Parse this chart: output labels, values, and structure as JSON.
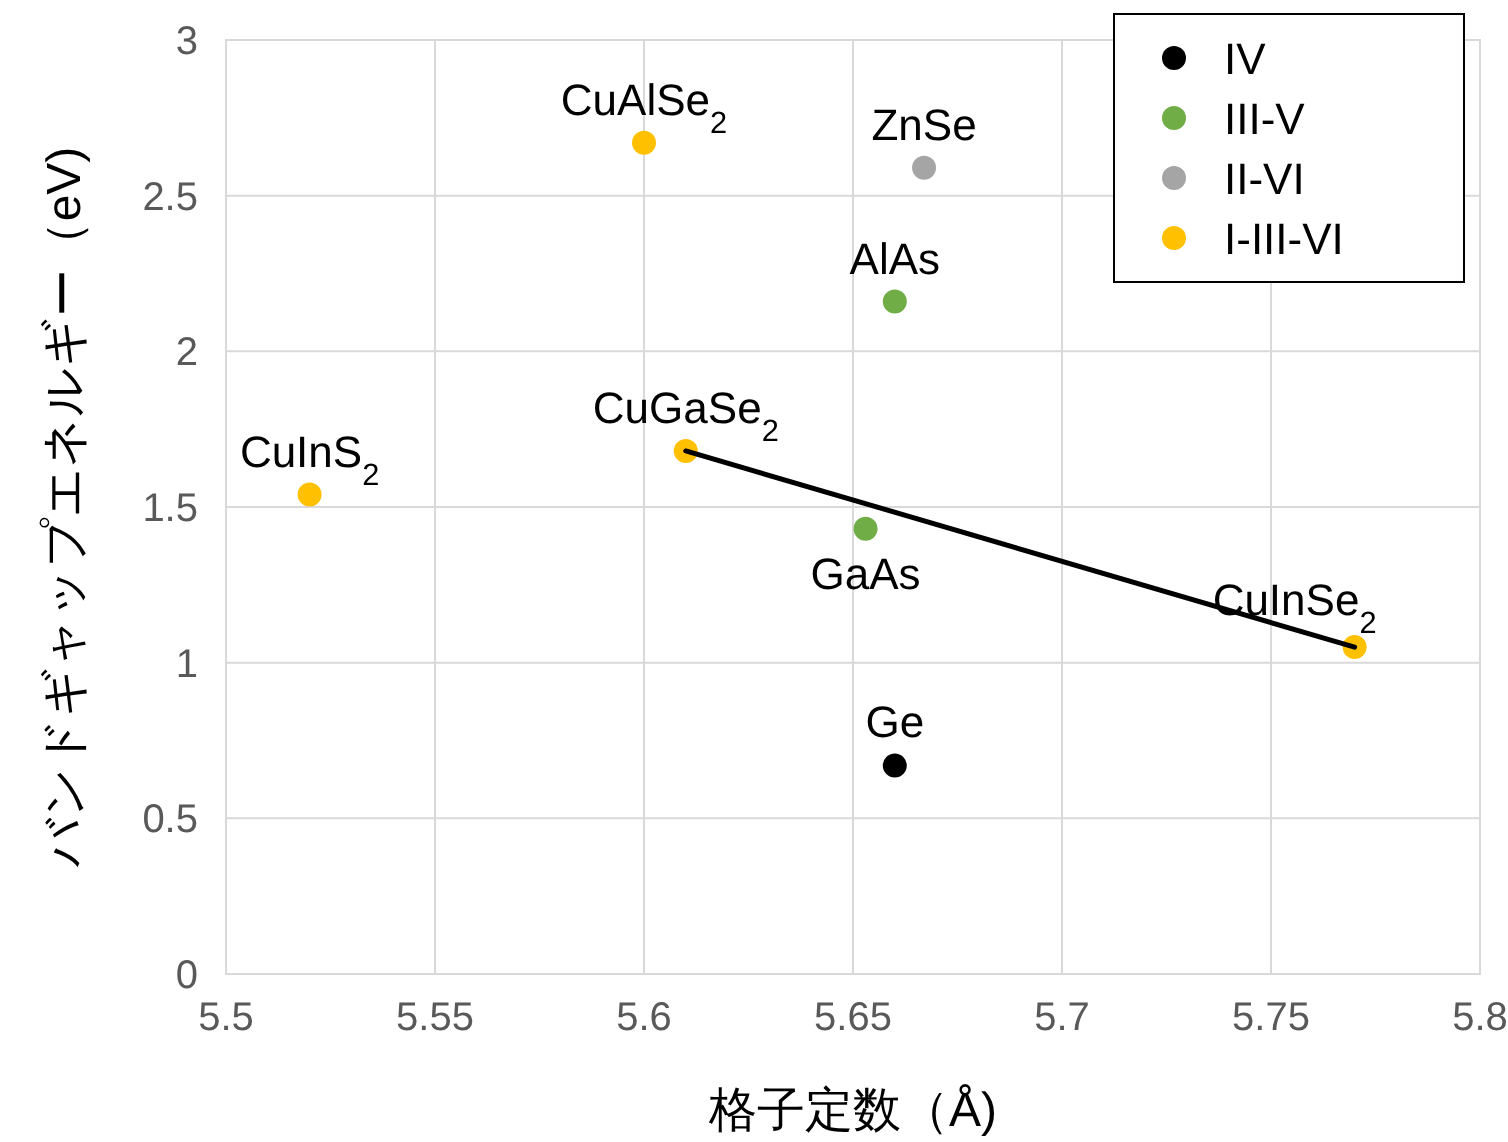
{
  "chart_data": {
    "type": "scatter",
    "xlabel": "格子定数（Å)",
    "ylabel": "バンドギャップエネルギー（eV)",
    "xlim": [
      5.5,
      5.8
    ],
    "xticks": [
      5.5,
      5.55,
      5.6,
      5.65,
      5.7,
      5.75,
      5.8
    ],
    "ylim": [
      0,
      3
    ],
    "yticks": [
      0,
      0.5,
      1,
      1.5,
      2,
      2.5,
      3
    ],
    "grid": true,
    "legend": "top right",
    "marker": "circle",
    "series": [
      {
        "name": "IV",
        "color": "#000000",
        "x": [
          5.66
        ],
        "values": [
          0.67
        ]
      },
      {
        "name": "III-V",
        "color": "#70ad47",
        "x": [
          5.653,
          5.66
        ],
        "values": [
          1.43,
          2.16
        ]
      },
      {
        "name": "II-VI",
        "color": "#a5a5a5",
        "x": [
          5.667
        ],
        "values": [
          2.59
        ]
      },
      {
        "name": "I-III-VI",
        "color": "#ffc000",
        "x": [
          5.6,
          5.61,
          5.52,
          5.77
        ],
        "values": [
          2.67,
          1.68,
          1.54,
          1.05
        ]
      },
      {
        "type": "line",
        "color": "#000000",
        "x": [
          5.61,
          5.77
        ],
        "values": [
          1.68,
          1.05
        ],
        "marker": "none"
      }
    ],
    "annotations": [
      {
        "text": "Ge",
        "x": 5.66,
        "y": 0.67
      },
      {
        "text": "GaAs",
        "x": 5.653,
        "y": 1.43
      },
      {
        "text": "AlAs",
        "x": 5.66,
        "y": 2.16
      },
      {
        "text": "ZnSe",
        "x": 5.667,
        "y": 2.59
      },
      {
        "text": "CuAlSe$_{2}$",
        "x": 5.6,
        "y": 2.67
      },
      {
        "text": "CuGaSe$_{2}$",
        "x": 5.61,
        "y": 1.68
      },
      {
        "text": "CuInS$_{2}$",
        "x": 5.52,
        "y": 1.54
      },
      {
        "text": "CuInSe$_{2}$",
        "x": 5.77,
        "y": 1.05
      }
    ]
  }
}
